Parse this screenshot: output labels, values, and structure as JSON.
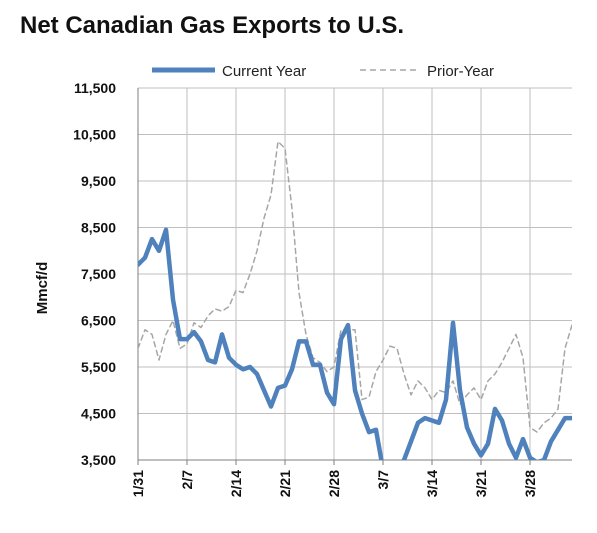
{
  "chart_data": {
    "type": "line",
    "title": "Net Canadian Gas Exports to U.S.",
    "xlabel": "",
    "ylabel": "Mmcf/d",
    "ylim": [
      3500,
      11500
    ],
    "yticks": [
      "11,500",
      "10,500",
      "9,500",
      "8,500",
      "7,500",
      "6,500",
      "5,500",
      "4,500",
      "3,500"
    ],
    "ytick_values": [
      11500,
      10500,
      9500,
      8500,
      7500,
      6500,
      5500,
      4500,
      3500
    ],
    "xticks": [
      {
        "label": "1/31",
        "x": 0
      },
      {
        "label": "2/7",
        "x": 7
      },
      {
        "label": "2/14",
        "x": 14
      },
      {
        "label": "2/21",
        "x": 21
      },
      {
        "label": "2/28",
        "x": 28
      },
      {
        "label": "3/7",
        "x": 35
      },
      {
        "label": "3/14",
        "x": 42
      },
      {
        "label": "3/21",
        "x": 49
      },
      {
        "label": "3/28",
        "x": 56
      }
    ],
    "xlim": [
      0,
      62
    ],
    "grid": true,
    "legend": "top",
    "series": [
      {
        "name": "Current Year",
        "color": "#4f81bd",
        "style": "solid",
        "x": [
          0,
          1,
          2,
          3,
          4,
          5,
          6,
          7,
          8,
          9,
          10,
          11,
          12,
          13,
          14,
          15,
          16,
          17,
          18,
          19,
          20,
          21,
          22,
          23,
          24,
          25,
          26,
          27,
          28,
          29,
          30,
          31,
          32,
          33,
          34,
          35,
          36,
          37,
          38,
          39,
          40,
          41,
          42,
          43,
          44,
          45,
          46,
          47,
          48,
          49,
          50,
          51,
          52,
          53,
          54,
          55,
          56,
          57,
          58,
          59,
          60,
          61,
          62
        ],
        "values": [
          7700,
          7850,
          8250,
          8000,
          8450,
          6950,
          6100,
          6100,
          6250,
          6050,
          5650,
          5600,
          6200,
          5700,
          5550,
          5450,
          5500,
          5350,
          5000,
          4650,
          5050,
          5100,
          5450,
          6050,
          6050,
          5550,
          5550,
          4950,
          4700,
          6100,
          6400,
          5000,
          4500,
          4100,
          4150,
          3300,
          3200,
          3300,
          3500,
          3900,
          4300,
          4400,
          4350,
          4300,
          4800,
          6450,
          5000,
          4200,
          3850,
          3600,
          3850,
          4600,
          4350,
          3850,
          3550,
          3950,
          3550,
          3450,
          3500,
          3900,
          4150,
          4400,
          4400
        ]
      },
      {
        "name": "Prior-Year",
        "color": "#a6a6a6",
        "style": "dashed",
        "x": [
          0,
          1,
          2,
          3,
          4,
          5,
          6,
          7,
          8,
          9,
          10,
          11,
          12,
          13,
          14,
          15,
          16,
          17,
          18,
          19,
          20,
          21,
          22,
          23,
          24,
          25,
          26,
          27,
          28,
          29,
          30,
          31,
          32,
          33,
          34,
          35,
          36,
          37,
          38,
          39,
          40,
          41,
          42,
          43,
          44,
          45,
          46,
          47,
          48,
          49,
          50,
          51,
          52,
          53,
          54,
          55,
          56,
          57,
          58,
          59,
          60,
          61,
          62
        ],
        "values": [
          5900,
          6300,
          6200,
          5650,
          6200,
          6500,
          5900,
          6000,
          6450,
          6350,
          6600,
          6750,
          6700,
          6800,
          7150,
          7100,
          7500,
          8000,
          8700,
          9200,
          10350,
          10200,
          8900,
          7100,
          6200,
          5700,
          5600,
          5400,
          5500,
          6300,
          6300,
          6300,
          4800,
          4850,
          5400,
          5650,
          5950,
          5900,
          5350,
          4900,
          5200,
          5050,
          4800,
          5000,
          4950,
          5200,
          4700,
          4900,
          5050,
          4800,
          5200,
          5350,
          5600,
          5900,
          6200,
          5700,
          4200,
          4100,
          4300,
          4400,
          4600,
          5900,
          6400
        ]
      }
    ]
  }
}
